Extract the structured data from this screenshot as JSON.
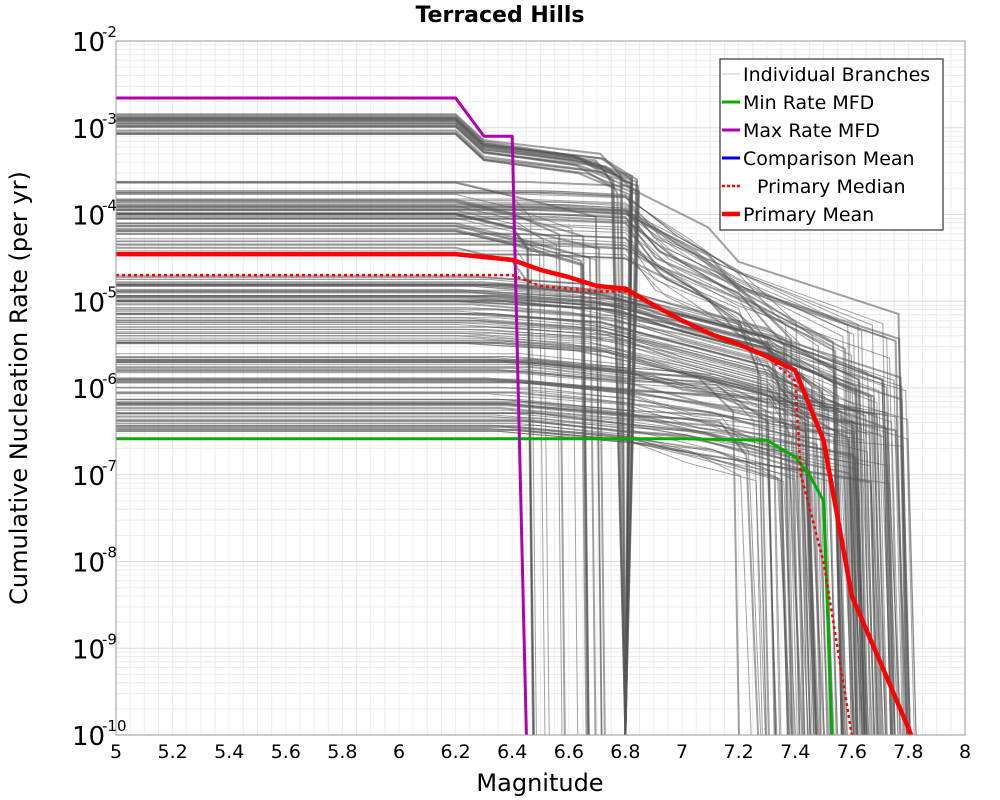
{
  "chart_data": {
    "type": "line",
    "title": "Terraced Hills",
    "xlabel": "Magnitude",
    "ylabel": "Cumulative Nucleation Rate (per yr)",
    "xlim": [
      5,
      8
    ],
    "ylim": [
      1e-10,
      0.01
    ],
    "yscale": "log",
    "grid": true,
    "legend_position": "top-right",
    "x_ticks": [
      "5",
      "5.2",
      "5.4",
      "5.6",
      "5.8",
      "6",
      "6.2",
      "6.4",
      "6.6",
      "6.8",
      "7",
      "7.2",
      "7.4",
      "7.6",
      "7.8",
      "8"
    ],
    "y_ticks": [
      {
        "base": "10",
        "exp": "-2"
      },
      {
        "base": "10",
        "exp": "-3"
      },
      {
        "base": "10",
        "exp": "-4"
      },
      {
        "base": "10",
        "exp": "-5"
      },
      {
        "base": "10",
        "exp": "-6"
      },
      {
        "base": "10",
        "exp": "-7"
      },
      {
        "base": "10",
        "exp": "-8"
      },
      {
        "base": "10",
        "exp": "-9"
      },
      {
        "base": "10",
        "exp": "-10"
      }
    ],
    "series": [
      {
        "name": "Individual Branches",
        "color": "#555555",
        "style": "solid",
        "note_levels": [
          0.0015,
          0.0003,
          3e-05,
          1e-05,
          1e-06
        ]
      },
      {
        "name": "Min Rate MFD",
        "color": "#00b000",
        "style": "solid",
        "x": [
          5.0,
          6.0,
          7.0,
          7.3,
          7.4,
          7.45,
          7.5,
          7.53
        ],
        "y": [
          2.6e-07,
          2.6e-07,
          2.6e-07,
          2.5e-07,
          1.6e-07,
          1e-07,
          5e-08,
          1e-10
        ]
      },
      {
        "name": "Max Rate MFD",
        "color": "#b000b0",
        "style": "solid",
        "x": [
          5.0,
          6.2,
          6.3,
          6.4,
          6.45
        ],
        "y": [
          0.0022,
          0.0022,
          0.0008,
          0.0008,
          1e-10
        ]
      },
      {
        "name": "Comparison Mean",
        "color": "#0000dd",
        "style": "solid",
        "x": [],
        "y": []
      },
      {
        "name": "Primary Median",
        "color": "#ff0000",
        "style": "dotted",
        "x": [
          5.0,
          6.2,
          6.4,
          6.5,
          6.7,
          6.8,
          7.0,
          7.2,
          7.3,
          7.4,
          7.42,
          7.5,
          7.55,
          7.6
        ],
        "y": [
          2e-05,
          2e-05,
          2e-05,
          1.5e-05,
          1.3e-05,
          1.3e-05,
          6e-06,
          3.2e-06,
          2.3e-06,
          1.2e-06,
          1e-07,
          1e-08,
          1e-09,
          1e-10
        ]
      },
      {
        "name": "Primary Mean",
        "color": "#ff0000",
        "style": "thick",
        "x": [
          5.0,
          6.2,
          6.4,
          6.5,
          6.6,
          6.7,
          6.8,
          6.9,
          7.0,
          7.1,
          7.2,
          7.3,
          7.4,
          7.5,
          7.55,
          7.6,
          7.7,
          7.8,
          7.81
        ],
        "y": [
          3.5e-05,
          3.5e-05,
          3e-05,
          2.3e-05,
          1.9e-05,
          1.5e-05,
          1.4e-05,
          9e-06,
          6e-06,
          4.2e-06,
          3.2e-06,
          2.3e-06,
          1.6e-06,
          2.5e-07,
          3.2e-08,
          4e-09,
          7e-10,
          1.2e-10,
          1e-10
        ]
      }
    ]
  }
}
